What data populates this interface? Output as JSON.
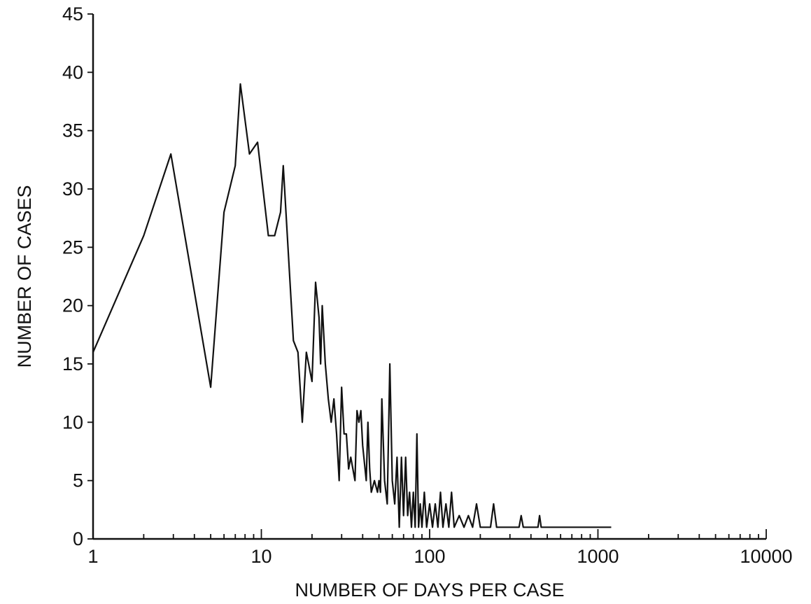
{
  "chart_data": {
    "type": "line",
    "title": "",
    "xlabel": "NUMBER OF DAYS PER CASE",
    "ylabel": "NUMBER OF CASES",
    "xscale": "log",
    "xlim": [
      1,
      10000
    ],
    "ylim": [
      0,
      45
    ],
    "grid": false,
    "legend": "none",
    "x_ticks": [
      1,
      10,
      100,
      1000,
      10000
    ],
    "x_tick_labels": [
      "1",
      "10",
      "100",
      "1000",
      "10000"
    ],
    "y_ticks": [
      0,
      5,
      10,
      15,
      20,
      25,
      30,
      35,
      40,
      45
    ],
    "y_tick_labels": [
      "0",
      "5",
      "10",
      "15",
      "20",
      "25",
      "30",
      "35",
      "40",
      "45"
    ],
    "line_color": "#111111",
    "series": [
      {
        "x": [
          1,
          2,
          2.9,
          5,
          6,
          7,
          7.5,
          8.5,
          9.5,
          11,
          12,
          13,
          13.5,
          15.5,
          16.5,
          17.5,
          18.5,
          20,
          21,
          22,
          22.5,
          23,
          24,
          25,
          26,
          27,
          28,
          29,
          30,
          31,
          32,
          33,
          34,
          35,
          36,
          37,
          38,
          39,
          40,
          42,
          43,
          44,
          45,
          47,
          49,
          50,
          51,
          52,
          54,
          56,
          58,
          60,
          62,
          64,
          66,
          68,
          70,
          72,
          74,
          76,
          78,
          80,
          82,
          84,
          86,
          88,
          90,
          93,
          96,
          100,
          104,
          108,
          112,
          116,
          120,
          125,
          130,
          135,
          140,
          150,
          160,
          170,
          180,
          190,
          200,
          215,
          230,
          240,
          250,
          270,
          300,
          340,
          350,
          360,
          400,
          440,
          450,
          460,
          500,
          600,
          800,
          1000,
          1200
        ],
        "y": [
          16,
          26,
          33,
          13,
          28,
          32,
          39,
          33,
          34,
          26,
          26,
          28,
          32,
          17,
          16,
          10,
          16,
          13.5,
          22,
          19,
          15,
          20,
          15,
          12,
          10,
          12,
          9,
          5,
          13,
          9,
          9,
          6,
          7,
          6,
          5,
          11,
          10,
          11,
          8,
          5,
          10,
          6,
          4,
          5,
          4,
          5,
          4,
          12,
          5,
          3,
          15,
          5,
          3,
          7,
          1,
          7,
          2,
          7,
          2,
          4,
          1,
          4,
          1,
          9,
          1,
          3,
          1,
          4,
          1,
          3,
          1,
          3,
          1,
          4,
          1,
          3,
          1,
          4,
          1,
          2,
          1,
          2,
          1,
          3,
          1,
          1,
          1,
          3,
          1,
          1,
          1,
          1,
          2,
          1,
          1,
          1,
          2,
          1,
          1,
          1,
          1,
          1,
          1
        ]
      }
    ]
  }
}
